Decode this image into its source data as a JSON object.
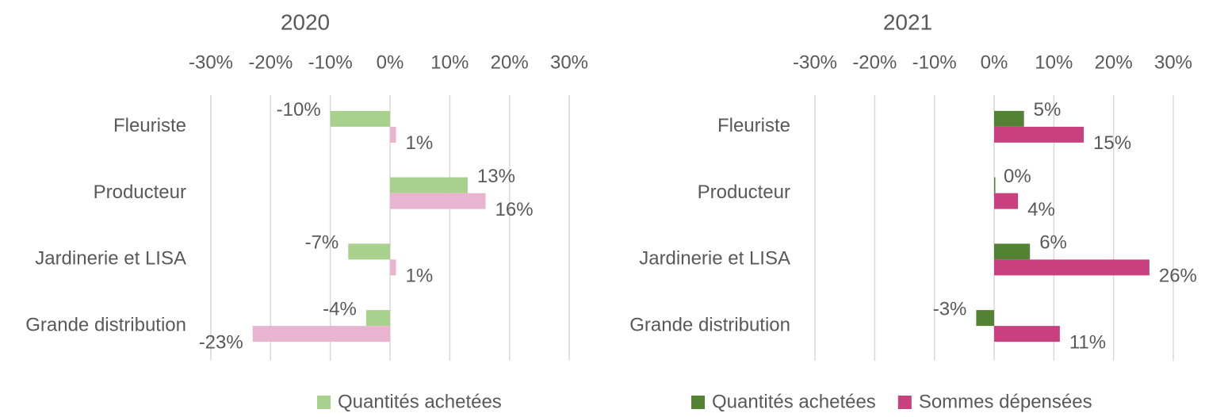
{
  "chart_data": [
    {
      "type": "bar",
      "orientation": "horizontal",
      "title": "2020",
      "categories": [
        "Fleuriste",
        "Producteur",
        "Jardinerie et LISA",
        "Grande distribution"
      ],
      "series": [
        {
          "name": "Quantités achetées",
          "color": "#a9d18e",
          "values": [
            -10,
            13,
            -7,
            -4
          ],
          "value_labels": [
            "-10%",
            "13%",
            "-7%",
            "-4%"
          ]
        },
        {
          "color": "#e8b4d0",
          "values": [
            1,
            16,
            1,
            -23
          ],
          "value_labels": [
            "1%",
            "16%",
            "1%",
            "-23%"
          ]
        }
      ],
      "xlim": [
        -30,
        30
      ],
      "xticks": [
        {
          "value": -30,
          "label": "-30%"
        },
        {
          "value": -20,
          "label": "-20%"
        },
        {
          "value": -10,
          "label": "-10%"
        },
        {
          "value": 0,
          "label": "0%"
        },
        {
          "value": 10,
          "label": "10%"
        },
        {
          "value": 20,
          "label": "20%"
        },
        {
          "value": 30,
          "label": "30%"
        }
      ],
      "grid": true,
      "legend": "bottom"
    },
    {
      "type": "bar",
      "orientation": "horizontal",
      "title": "2021",
      "categories": [
        "Fleuriste",
        "Producteur",
        "Jardinerie et LISA",
        "Grande distribution"
      ],
      "series": [
        {
          "name": "Quantités achetées",
          "color": "#548235",
          "values": [
            5,
            0,
            6,
            -3
          ],
          "value_labels": [
            "5%",
            "0%",
            "6%",
            "-3%"
          ]
        },
        {
          "name": "Sommes dépensées",
          "color": "#c9407f",
          "values": [
            15,
            4,
            26,
            11
          ],
          "value_labels": [
            "15%",
            "4%",
            "26%",
            "11%"
          ]
        }
      ],
      "xlim": [
        -30,
        30
      ],
      "xticks": [
        {
          "value": -30,
          "label": "-30%"
        },
        {
          "value": -20,
          "label": "-20%"
        },
        {
          "value": -10,
          "label": "-10%"
        },
        {
          "value": 0,
          "label": "0%"
        },
        {
          "value": 10,
          "label": "10%"
        },
        {
          "value": 20,
          "label": "20%"
        },
        {
          "value": 30,
          "label": "30%"
        }
      ],
      "grid": true,
      "legend": "bottom"
    }
  ]
}
